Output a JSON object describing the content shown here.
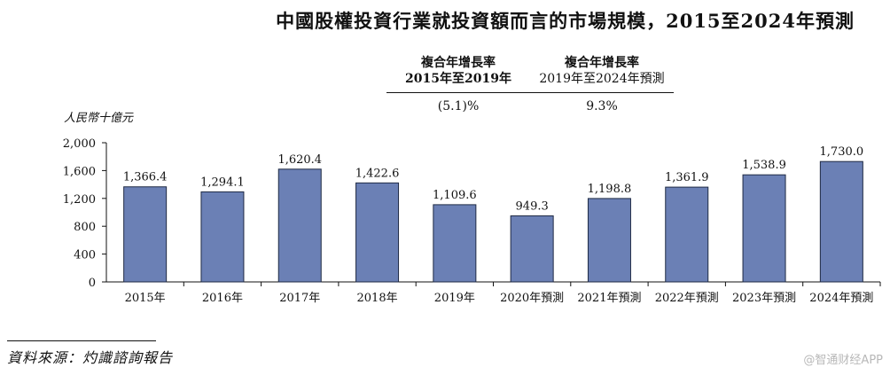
{
  "header": {
    "title": "中國股權投資行業就投資額而言的市場規模，2015至2024年預測"
  },
  "cagr": {
    "col1_line1": "複合年增長率",
    "col1_line2": "2015年至2019年",
    "col2_line1": "複合年增長率",
    "col2_line2": "2019年至2024年預測",
    "col1_value": "(5.1)%",
    "col2_value": "9.3%"
  },
  "chart_data": {
    "type": "bar",
    "unit_label": "人民幣十億元",
    "categories": [
      "2015年",
      "2016年",
      "2017年",
      "2018年",
      "2019年",
      "2020年預測",
      "2021年預測",
      "2022年預測",
      "2023年預測",
      "2024年預測"
    ],
    "values": [
      1366.4,
      1294.1,
      1620.4,
      1422.6,
      1109.6,
      949.3,
      1198.8,
      1361.9,
      1538.9,
      1730.0
    ],
    "value_labels": [
      "1,366.4",
      "1,294.1",
      "1,620.4",
      "1,422.6",
      "1,109.6",
      "949.3",
      "1,198.8",
      "1,361.9",
      "1,538.9",
      "1,730.0"
    ],
    "ylim": [
      0,
      2000
    ],
    "yticks": [
      0,
      400,
      800,
      1200,
      1600,
      2000
    ],
    "ytick_labels": [
      "0",
      "400",
      "800",
      "1,200",
      "1,600",
      "2,000"
    ],
    "bar_color": "#6b80b5",
    "bar_edge": "#1f2a44"
  },
  "footer": {
    "source": "資料來源：灼識諮詢報告",
    "watermark": "@智通财经APP"
  }
}
